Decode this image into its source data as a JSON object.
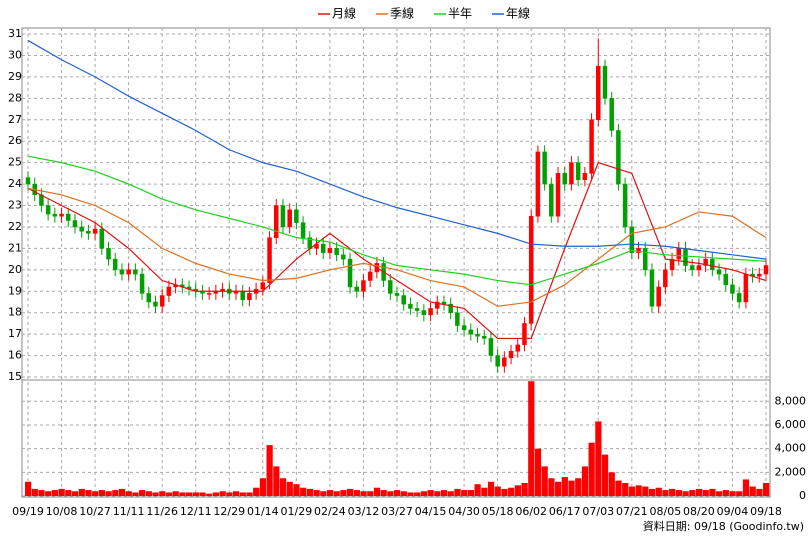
{
  "chart_data": [
    {
      "type": "candlestick",
      "legend": "top",
      "grid": true,
      "up_color": "#ff0000",
      "down_color": "#00a000",
      "categories": [
        "09/19",
        null,
        null,
        null,
        null,
        "10/08",
        null,
        null,
        null,
        null,
        "10/27",
        null,
        null,
        null,
        null,
        "11/11",
        null,
        null,
        null,
        null,
        "11/26",
        null,
        null,
        null,
        null,
        "12/11",
        null,
        null,
        null,
        null,
        "12/29",
        null,
        null,
        null,
        null,
        "01/14",
        null,
        null,
        null,
        null,
        "01/29",
        null,
        null,
        null,
        null,
        "02/24",
        null,
        null,
        null,
        null,
        "03/12",
        null,
        null,
        null,
        null,
        "03/27",
        null,
        null,
        null,
        null,
        "04/15",
        null,
        null,
        null,
        null,
        "04/30",
        null,
        null,
        null,
        null,
        "05/18",
        null,
        null,
        null,
        null,
        "06/02",
        null,
        null,
        null,
        null,
        "06/17",
        null,
        null,
        null,
        null,
        "07/03",
        null,
        null,
        null,
        null,
        "07/21",
        null,
        null,
        null,
        null,
        "08/05",
        null,
        null,
        null,
        null,
        "08/20",
        null,
        null,
        null,
        null,
        "09/04",
        null,
        null,
        null,
        null,
        "09/18"
      ],
      "open": [
        24.3,
        24.0,
        23.5,
        23.0,
        22.6,
        22.5,
        22.6,
        22.3,
        22.0,
        21.8,
        21.7,
        21.9,
        21.0,
        20.5,
        20.0,
        19.8,
        20.0,
        19.8,
        18.9,
        18.5,
        18.3,
        18.8,
        19.2,
        19.3,
        19.2,
        19.1,
        19.0,
        18.9,
        18.9,
        19.0,
        19.1,
        18.9,
        19.0,
        18.6,
        18.9,
        19.1,
        19.4,
        21.5,
        23.0,
        22.0,
        22.8,
        22.2,
        21.5,
        21.0,
        21.2,
        20.8,
        21.0,
        20.7,
        20.5,
        19.2,
        19.0,
        19.5,
        19.9,
        20.3,
        19.5,
        18.9,
        18.8,
        18.4,
        18.2,
        18.1,
        17.9,
        18.2,
        18.5,
        18.4,
        18.0,
        17.4,
        17.2,
        17.0,
        16.9,
        16.8,
        16.0,
        15.5,
        15.9,
        16.2,
        16.5,
        17.5,
        22.5,
        25.5,
        24.0,
        22.5,
        24.5,
        24.0,
        25.0,
        24.2,
        24.5,
        27.0,
        29.5,
        28.0,
        26.5,
        24.0,
        22.0,
        20.8,
        21.0,
        20.0,
        18.3,
        19.2,
        20.0,
        20.5,
        21.0,
        20.2,
        20.0,
        20.2,
        20.5,
        20.0,
        19.8,
        19.3,
        18.9,
        18.5,
        19.8,
        19.7,
        19.8
      ],
      "high": [
        24.6,
        24.3,
        23.8,
        23.3,
        22.9,
        22.9,
        22.9,
        22.6,
        22.3,
        22.1,
        22.2,
        22.2,
        21.3,
        20.8,
        20.3,
        20.3,
        20.3,
        20.1,
        19.2,
        18.8,
        19.1,
        19.5,
        19.6,
        19.6,
        19.5,
        19.4,
        19.3,
        19.2,
        19.3,
        19.4,
        19.4,
        19.3,
        19.3,
        19.2,
        19.4,
        19.7,
        21.8,
        23.3,
        23.3,
        23.1,
        23.1,
        22.5,
        21.8,
        21.5,
        21.5,
        21.3,
        21.3,
        21.0,
        20.8,
        19.5,
        19.8,
        20.2,
        20.6,
        20.6,
        19.8,
        19.2,
        19.1,
        18.7,
        18.5,
        18.4,
        18.5,
        18.8,
        18.8,
        18.7,
        18.3,
        17.7,
        17.5,
        17.3,
        17.2,
        17.1,
        16.3,
        16.2,
        16.5,
        16.8,
        17.8,
        22.8,
        25.8,
        25.8,
        24.3,
        24.8,
        24.8,
        25.3,
        25.3,
        24.8,
        27.3,
        30.8,
        29.8,
        28.3,
        26.8,
        24.3,
        22.3,
        21.3,
        21.3,
        20.3,
        19.5,
        20.3,
        20.8,
        21.3,
        21.3,
        20.5,
        20.5,
        20.8,
        20.8,
        20.3,
        20.1,
        19.6,
        19.2,
        20.1,
        20.1,
        20.1,
        20.5
      ],
      "low": [
        23.7,
        23.2,
        22.7,
        22.3,
        22.2,
        22.2,
        22.0,
        21.7,
        21.5,
        21.4,
        21.4,
        20.7,
        20.2,
        19.7,
        19.5,
        19.5,
        19.5,
        18.6,
        18.2,
        18.0,
        18.0,
        18.5,
        18.9,
        18.9,
        18.8,
        18.7,
        18.6,
        18.6,
        18.6,
        18.7,
        18.6,
        18.6,
        18.3,
        18.3,
        18.6,
        18.8,
        19.1,
        21.2,
        21.7,
        21.7,
        21.9,
        21.2,
        20.7,
        20.7,
        20.5,
        20.5,
        20.4,
        20.2,
        18.9,
        18.7,
        18.7,
        19.2,
        19.6,
        19.2,
        18.6,
        18.5,
        18.1,
        17.9,
        17.8,
        17.6,
        17.6,
        17.9,
        18.1,
        17.7,
        17.1,
        16.9,
        16.7,
        16.6,
        16.5,
        15.7,
        15.2,
        15.2,
        15.6,
        15.9,
        16.2,
        17.2,
        22.2,
        23.7,
        22.2,
        22.2,
        23.7,
        23.7,
        23.9,
        23.9,
        24.2,
        26.7,
        27.7,
        26.2,
        23.7,
        21.7,
        20.5,
        20.5,
        19.7,
        18.0,
        18.0,
        18.9,
        19.7,
        20.2,
        19.9,
        19.7,
        19.7,
        19.9,
        19.7,
        19.5,
        19.0,
        18.6,
        18.2,
        18.2,
        19.4,
        19.4,
        19.5
      ],
      "close": [
        24.0,
        23.5,
        23.0,
        22.6,
        22.5,
        22.6,
        22.3,
        22.0,
        21.8,
        21.7,
        21.9,
        21.0,
        20.5,
        20.0,
        19.8,
        20.0,
        19.8,
        18.9,
        18.5,
        18.3,
        18.8,
        19.2,
        19.3,
        19.2,
        19.1,
        19.0,
        18.9,
        18.9,
        19.0,
        19.1,
        18.9,
        19.0,
        18.6,
        18.9,
        19.1,
        19.4,
        21.5,
        23.0,
        22.0,
        22.8,
        22.2,
        21.5,
        21.0,
        21.2,
        20.8,
        21.0,
        20.7,
        20.5,
        19.2,
        19.0,
        19.5,
        19.9,
        20.3,
        19.5,
        18.9,
        18.8,
        18.4,
        18.2,
        18.1,
        17.9,
        18.2,
        18.5,
        18.4,
        18.0,
        17.4,
        17.2,
        17.0,
        16.9,
        16.8,
        16.0,
        15.5,
        15.9,
        16.2,
        16.5,
        17.5,
        22.5,
        25.5,
        24.0,
        22.5,
        24.5,
        24.0,
        25.0,
        24.2,
        24.5,
        27.0,
        29.5,
        28.0,
        26.5,
        24.0,
        22.0,
        20.8,
        21.0,
        20.0,
        18.3,
        19.2,
        20.0,
        20.5,
        21.0,
        20.2,
        20.0,
        20.2,
        20.5,
        20.0,
        19.8,
        19.3,
        18.9,
        18.5,
        19.8,
        19.7,
        19.8,
        20.2
      ],
      "series": [
        {
          "name": "月線",
          "color": "#e01010",
          "x": [
            0,
            5,
            10,
            15,
            20,
            25,
            30,
            35,
            40,
            45,
            50,
            55,
            60,
            65,
            70,
            75,
            80,
            85,
            90,
            95,
            100,
            105,
            110
          ],
          "values": [
            23.8,
            23.0,
            22.2,
            21.0,
            19.5,
            19.0,
            19.0,
            19.0,
            20.5,
            21.7,
            20.5,
            19.5,
            18.5,
            18.2,
            16.8,
            16.8,
            21.0,
            25.0,
            24.5,
            20.5,
            20.3,
            20.0,
            19.5
          ]
        },
        {
          "name": "季線",
          "color": "#e07020",
          "x": [
            0,
            5,
            10,
            15,
            20,
            25,
            30,
            35,
            40,
            45,
            50,
            55,
            60,
            65,
            70,
            75,
            80,
            85,
            90,
            95,
            100,
            105,
            110
          ],
          "values": [
            23.8,
            23.5,
            23.0,
            22.2,
            21.0,
            20.3,
            19.8,
            19.5,
            19.6,
            20.0,
            20.3,
            20.0,
            19.5,
            19.2,
            18.3,
            18.5,
            19.3,
            20.5,
            21.7,
            22.0,
            22.7,
            22.5,
            21.5
          ]
        },
        {
          "name": "半年",
          "color": "#20d020",
          "x": [
            0,
            5,
            10,
            15,
            20,
            25,
            30,
            35,
            40,
            45,
            50,
            55,
            60,
            65,
            70,
            75,
            80,
            85,
            90,
            95,
            100,
            105,
            110
          ],
          "values": [
            25.3,
            25.0,
            24.6,
            24.0,
            23.3,
            22.8,
            22.4,
            22.0,
            21.5,
            21.3,
            20.7,
            20.2,
            20.0,
            19.8,
            19.5,
            19.3,
            19.8,
            20.3,
            20.9,
            20.7,
            20.6,
            20.5,
            20.4
          ]
        },
        {
          "name": "年線",
          "color": "#2060d0",
          "x": [
            0,
            5,
            10,
            15,
            20,
            25,
            30,
            35,
            40,
            45,
            50,
            55,
            60,
            65,
            70,
            75,
            80,
            85,
            90,
            95,
            100,
            105,
            110
          ],
          "values": [
            30.7,
            29.8,
            29.0,
            28.1,
            27.3,
            26.5,
            25.6,
            25.0,
            24.6,
            24.0,
            23.4,
            22.9,
            22.5,
            22.1,
            21.7,
            21.2,
            21.1,
            21.1,
            21.2,
            21.1,
            20.9,
            20.7,
            20.5
          ]
        }
      ],
      "ylim": [
        15,
        31
      ],
      "yticks": [
        15,
        16,
        17,
        18,
        19,
        20,
        21,
        22,
        23,
        24,
        25,
        26,
        27,
        28,
        29,
        30,
        31
      ]
    },
    {
      "type": "bar",
      "color": "#ff0000",
      "grid": true,
      "values": [
        1200,
        600,
        500,
        400,
        500,
        600,
        500,
        400,
        600,
        500,
        400,
        500,
        400,
        500,
        600,
        400,
        300,
        500,
        400,
        300,
        400,
        300,
        400,
        300,
        300,
        300,
        300,
        200,
        300,
        400,
        300,
        400,
        300,
        300,
        700,
        1500,
        4300,
        2500,
        1500,
        1200,
        1000,
        700,
        600,
        500,
        400,
        500,
        400,
        500,
        600,
        500,
        400,
        400,
        700,
        500,
        400,
        500,
        400,
        300,
        300,
        400,
        500,
        400,
        500,
        400,
        600,
        500,
        500,
        1000,
        700,
        1200,
        800,
        600,
        700,
        900,
        1100,
        9700,
        4000,
        2500,
        1500,
        1200,
        1600,
        1300,
        1500,
        2500,
        4500,
        6300,
        3500,
        2000,
        1300,
        1100,
        800,
        900,
        800,
        600,
        700,
        500,
        600,
        500,
        400,
        500,
        600,
        500,
        600,
        400,
        500,
        400,
        400,
        1400,
        800,
        600,
        1100
      ],
      "ylim": [
        0,
        9800
      ],
      "yticks": [
        0,
        {
          "value": 2000,
          "label": "2,000"
        },
        {
          "value": 4000,
          "label": "4,000"
        },
        {
          "value": 6000,
          "label": "6,000"
        },
        {
          "value": 8000,
          "label": "8,000"
        }
      ]
    }
  ],
  "footer": "資料日期: 09/18 (Goodinfo.tw)"
}
